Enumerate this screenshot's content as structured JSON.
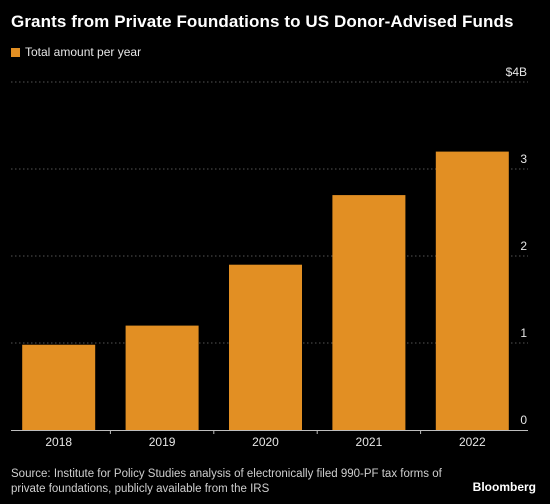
{
  "title": "Grants from Private Foundations to US Donor-Advised Funds",
  "legend": {
    "label": "Total amount per year"
  },
  "source": "Source: Institute for Policy Studies analysis of electronically filed 990-PF tax forms of private foundations, publicly available from the IRS",
  "brand": "Bloomberg",
  "colors": {
    "background": "#000000",
    "bar": "#e28f23",
    "grid": "#555555",
    "axis_text": "#e6e6e6"
  },
  "chart_data": {
    "type": "bar",
    "categories": [
      "2018",
      "2019",
      "2020",
      "2021",
      "2022"
    ],
    "series": [
      {
        "name": "Total amount per year",
        "values": [
          0.98,
          1.2,
          1.9,
          2.7,
          3.2
        ]
      }
    ],
    "title": "Grants from Private Foundations to US Donor-Advised Funds",
    "xlabel": "",
    "ylabel": "",
    "ylim": [
      0,
      4
    ],
    "yticks": [
      0,
      1,
      2,
      3,
      4
    ],
    "ytick_labels": [
      "0",
      "1",
      "2",
      "3",
      "$4B"
    ],
    "grid": true,
    "legend_position": "top-left",
    "y_axis_position": "right"
  }
}
